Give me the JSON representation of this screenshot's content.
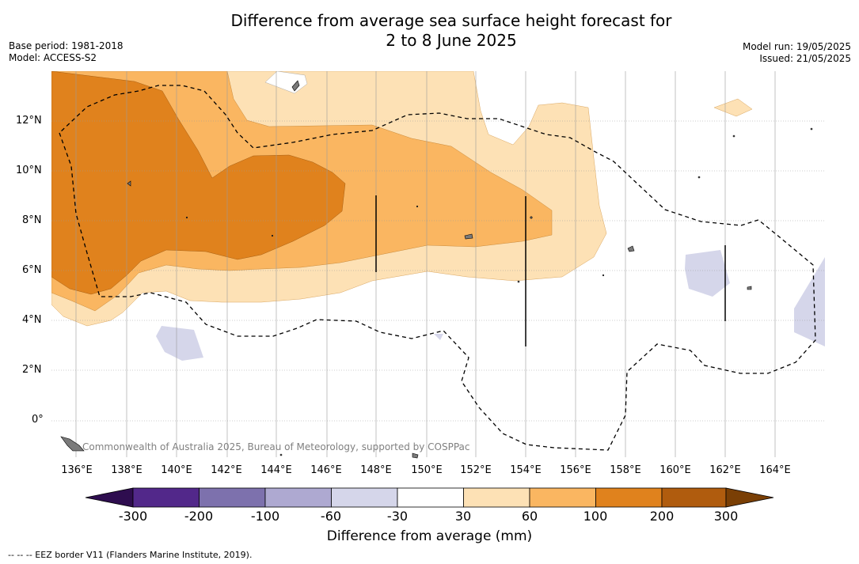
{
  "title_line1": "Difference from average sea surface height forecast for",
  "title_line2": "2 to 8 June 2025",
  "base_period": "Base period: 1981-2018",
  "model": "Model: ACCESS-S2",
  "model_run": "Model run: 19/05/2025",
  "issued": "Issued: 21/05/2025",
  "copyright": "Commonwealth of Australia 2025, Bureau of Meteorology, supported by COSPPac",
  "lat_labels": [
    "12°N",
    "10°N",
    "8°N",
    "6°N",
    "4°N",
    "2°N",
    "0°"
  ],
  "lon_labels": [
    "136°E",
    "138°E",
    "140°E",
    "142°E",
    "144°E",
    "146°E",
    "148°E",
    "150°E",
    "152°E",
    "154°E",
    "156°E",
    "158°E",
    "160°E",
    "162°E",
    "164°E"
  ],
  "colorbar": {
    "title": "Difference from average (mm)",
    "ticks": [
      "-300",
      "-200",
      "-100",
      "-60",
      "-30",
      "30",
      "60",
      "100",
      "200",
      "300"
    ],
    "colors": [
      "#4b1c6f",
      "#52288a",
      "#7d71ad",
      "#aea9d1",
      "#d5d6ea",
      "#ffffff",
      "#fde1b5",
      "#fab661",
      "#e0821d",
      "#b05c0e",
      "#7a3f05"
    ]
  },
  "footer": "--  --  -- EEZ border V11 (Flanders Marine Institute, 2019)."
}
